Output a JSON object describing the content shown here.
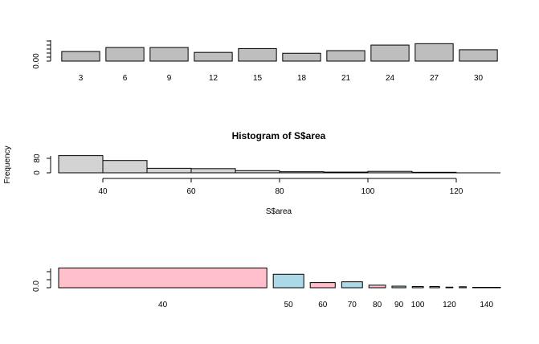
{
  "chart_data": [
    {
      "type": "bar",
      "categories": [
        "3",
        "6",
        "9",
        "12",
        "15",
        "18",
        "21",
        "24",
        "27",
        "30"
      ],
      "values": [
        0.55,
        0.78,
        0.78,
        0.5,
        0.72,
        0.45,
        0.6,
        0.92,
        1.0,
        0.65
      ],
      "ylim": [
        0,
        1.2
      ],
      "yticks": [
        "0.00"
      ],
      "title": "",
      "xlabel": "",
      "ylabel": "",
      "color": "#bebebe"
    },
    {
      "type": "bar",
      "title": "Histogram of S$area",
      "xlabel": "S$area",
      "ylabel": "Frequency",
      "bins": [
        [
          30,
          40
        ],
        [
          40,
          50
        ],
        [
          50,
          60
        ],
        [
          60,
          70
        ],
        [
          70,
          80
        ],
        [
          80,
          90
        ],
        [
          90,
          100
        ],
        [
          100,
          110
        ],
        [
          110,
          120
        ]
      ],
      "values": [
        95,
        68,
        25,
        23,
        12,
        6,
        4,
        8,
        3
      ],
      "xticks": [
        "40",
        "60",
        "80",
        "100",
        "120"
      ],
      "xlim": [
        30,
        130
      ],
      "ylim": [
        0,
        120
      ],
      "yticks": [
        "0",
        "80"
      ],
      "color": "#d3d3d3"
    },
    {
      "type": "bar",
      "categories": [
        "40",
        "50",
        "60",
        "70",
        "80",
        "90",
        "100",
        "",
        "120",
        "",
        "140"
      ],
      "widths": [
        15,
        2.2,
        1.8,
        1.5,
        1.2,
        1,
        0.8,
        0.7,
        0.5,
        0.5,
        2
      ],
      "values": [
        1.0,
        0.68,
        0.26,
        0.3,
        0.13,
        0.08,
        0.06,
        0.06,
        0.03,
        0.05,
        0.02
      ],
      "colors": [
        "#ffc0cb",
        "#add8e6",
        "#ffc0cb",
        "#add8e6",
        "#ffc0cb",
        "#add8e6",
        "#ffc0cb",
        "#add8e6",
        "#ffc0cb",
        "#add8e6",
        "#ffc0cb"
      ],
      "ylim": [
        0,
        1.3
      ],
      "yticks": [
        "0.0"
      ],
      "title": "",
      "xlabel": "",
      "ylabel": ""
    }
  ]
}
